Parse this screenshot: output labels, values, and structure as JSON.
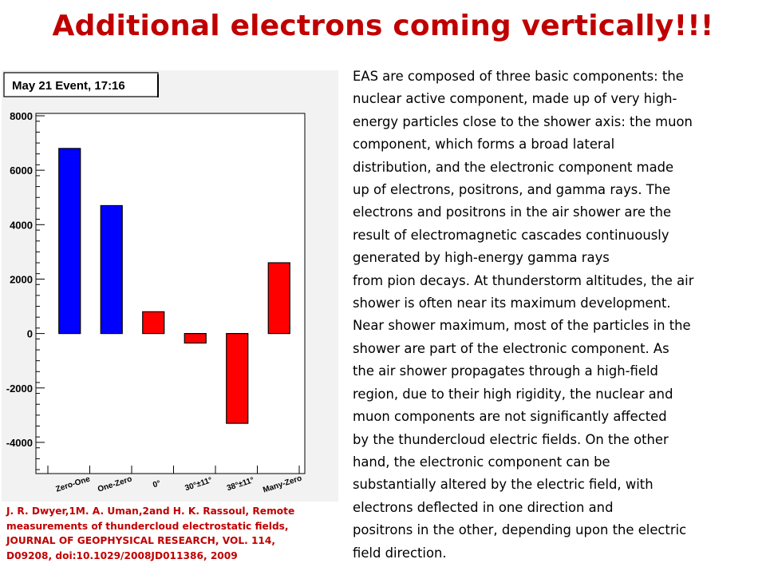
{
  "slide": {
    "title": "Additional electrons coming vertically!!!",
    "body": "EAS are composed of three basic components: the\nnuclear active component, made up of very high-\nenergy particles close to the shower axis: the muon\ncomponent, which forms a broad lateral\ndistribution, and the electronic component made\nup of electrons, positrons, and gamma rays. The\nelectrons and positrons in the air shower are the\nresult of electromagnetic cascades continuously\ngenerated by high-energy gamma rays\nfrom pion decays. At thunderstorm altitudes, the air\nshower is often near its maximum development.\nNear shower maximum, most of the particles in the\nshower are part of the electronic component. As\nthe air shower propagates through a high-field\nregion, due to their high rigidity, the nuclear and\nmuon components are not significantly affected\nby the thundercloud electric fields. On the other\nhand, the electronic component can be\nsubstantially altered by the electric field, with\nelectrons deflected in one direction and\npositrons in the other, depending upon the electric\nfield direction.",
    "reference": "J. R. Dwyer,1M. A. Uman,2and H. K. Rassoul, Remote\nmeasurements of thundercloud electrostatic fields,\nJOURNAL OF GEOPHYSICAL RESEARCH, VOL. 114,\nD09208, doi:10.1029/2008JD011386, 2009"
  },
  "chart_data": {
    "type": "bar",
    "title": "May 21 Event, 17:16",
    "categories": [
      "Zero-One",
      "One-Zero",
      "0°",
      "30°±11°",
      "38°±11°",
      "Many-Zero"
    ],
    "values": [
      6800,
      4700,
      800,
      -350,
      -3300,
      2600
    ],
    "bar_colors": [
      "#0000ff",
      "#0000ff",
      "#ff0000",
      "#ff0000",
      "#ff0000",
      "#ff0000"
    ],
    "ylim": [
      -5000,
      8000
    ],
    "yticks": [
      {
        "value": 8000,
        "label": "8000"
      },
      {
        "value": 6000,
        "label": "6000"
      },
      {
        "value": 4000,
        "label": "4000"
      },
      {
        "value": 2000,
        "label": "2000"
      },
      {
        "value": 0,
        "label": "0"
      },
      {
        "value": -2000,
        "label": "-2000"
      },
      {
        "value": -4000,
        "label": "-4000"
      }
    ],
    "xlabel": "",
    "ylabel": "",
    "grid": false,
    "legend": "none"
  }
}
